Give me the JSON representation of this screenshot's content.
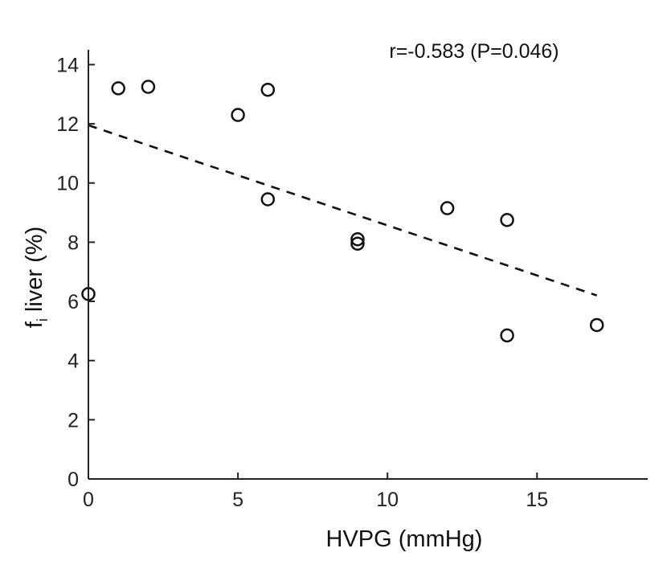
{
  "chart_data": {
    "type": "scatter",
    "title": "",
    "xlabel": "HVPG (mmHg)",
    "ylabel_main": "f",
    "ylabel_sub": "i",
    "ylabel_rest": " liver (%)",
    "xlim": [
      0,
      18.7
    ],
    "ylim": [
      0,
      14.5
    ],
    "xticks": [
      0,
      5,
      10,
      15
    ],
    "yticks": [
      0,
      2,
      4,
      6,
      8,
      10,
      12,
      14
    ],
    "grid": false,
    "annotation": "r=-0.583 (P=0.046)",
    "points": [
      {
        "x": 0,
        "y": 6.25
      },
      {
        "x": 1,
        "y": 13.2
      },
      {
        "x": 2,
        "y": 13.25
      },
      {
        "x": 5,
        "y": 12.3
      },
      {
        "x": 6,
        "y": 13.15
      },
      {
        "x": 6,
        "y": 9.45
      },
      {
        "x": 9,
        "y": 8.1
      },
      {
        "x": 9,
        "y": 7.95
      },
      {
        "x": 12,
        "y": 9.15
      },
      {
        "x": 14,
        "y": 8.75
      },
      {
        "x": 14,
        "y": 4.85
      },
      {
        "x": 17,
        "y": 5.2
      }
    ],
    "trendline": {
      "style": "dashed",
      "x": [
        0,
        17
      ],
      "y": [
        11.95,
        6.2
      ]
    }
  }
}
